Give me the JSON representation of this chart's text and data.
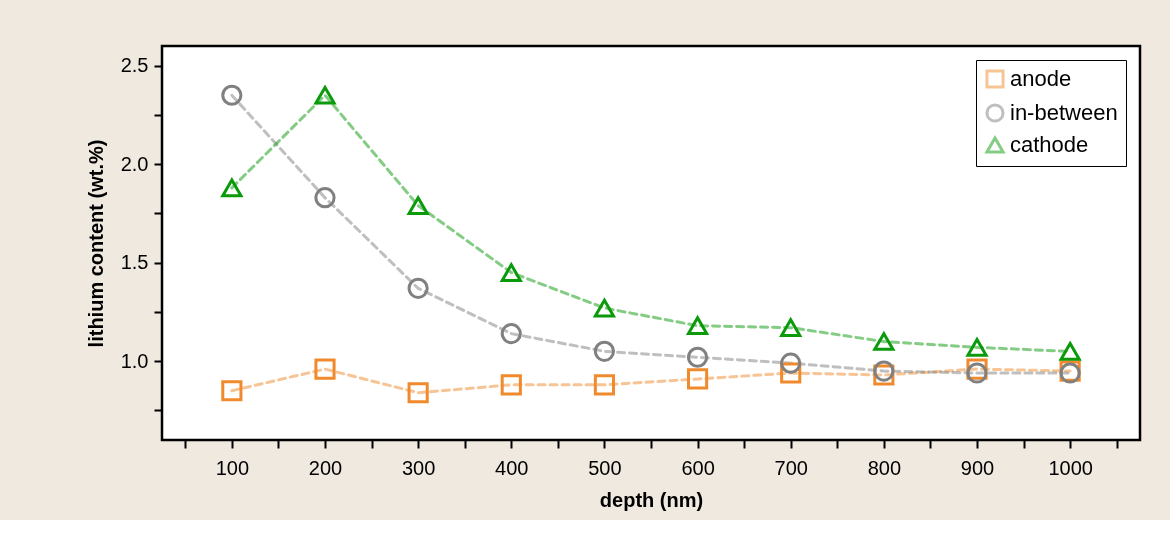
{
  "chart_data": {
    "type": "line",
    "xlabel": "depth (nm)",
    "ylabel": "lithium content (wt.%)",
    "x": [
      100,
      200,
      300,
      400,
      500,
      600,
      700,
      800,
      900,
      1000
    ],
    "series": [
      {
        "name": "anode",
        "color": "#f08a2c",
        "marker": "square",
        "values": [
          0.85,
          0.96,
          0.84,
          0.88,
          0.88,
          0.91,
          0.94,
          0.93,
          0.96,
          0.95
        ]
      },
      {
        "name": "in-between",
        "color": "#808080",
        "marker": "circle",
        "values": [
          2.35,
          1.83,
          1.37,
          1.14,
          1.05,
          1.02,
          0.99,
          0.95,
          0.94,
          0.94
        ]
      },
      {
        "name": "cathode",
        "color": "#0a9a0a",
        "marker": "triangle",
        "values": [
          1.88,
          2.35,
          1.79,
          1.45,
          1.27,
          1.18,
          1.17,
          1.1,
          1.07,
          1.05
        ]
      }
    ],
    "xlim": [
      25,
      1075
    ],
    "xticks": [
      {
        "value": 50,
        "label": null
      },
      100,
      {
        "value": 150,
        "label": null
      },
      200,
      {
        "value": 250,
        "label": null
      },
      300,
      {
        "value": 350,
        "label": null
      },
      400,
      {
        "value": 450,
        "label": null
      },
      500,
      {
        "value": 550,
        "label": null
      },
      600,
      {
        "value": 650,
        "label": null
      },
      700,
      {
        "value": 750,
        "label": null
      },
      800,
      {
        "value": 850,
        "label": null
      },
      900,
      {
        "value": 950,
        "label": null
      },
      1000,
      {
        "value": 1050,
        "label": null
      }
    ],
    "ylim": [
      0.6,
      2.6
    ],
    "yticks": [
      {
        "value": 0.75,
        "label": null
      },
      {
        "value": 1.0,
        "label": "1.0"
      },
      {
        "value": 1.25,
        "label": null
      },
      {
        "value": 1.5,
        "label": "1.5"
      },
      {
        "value": 1.75,
        "label": null
      },
      {
        "value": 2.0,
        "label": "2.0"
      },
      {
        "value": 2.25,
        "label": null
      },
      {
        "value": 2.5,
        "label": "2.5"
      }
    ],
    "grid": false,
    "legend": "top right",
    "line_style": "dashed"
  }
}
